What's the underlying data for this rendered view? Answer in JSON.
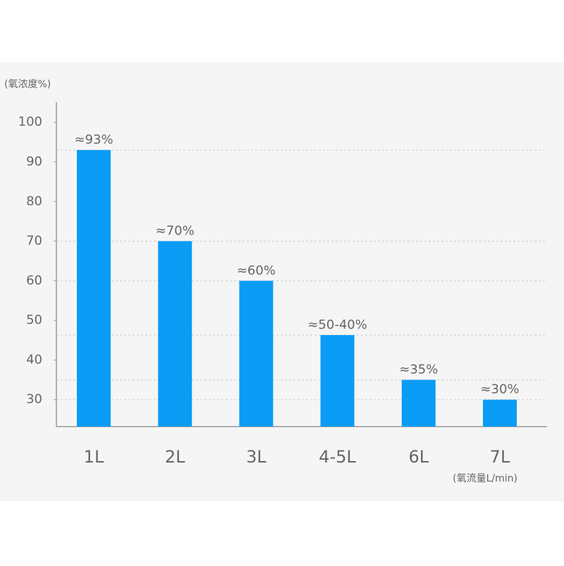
{
  "chart_data": {
    "type": "bar",
    "y_axis_label": "(氧浓度%)",
    "x_axis_label": "(氧流量L/min)",
    "categories": [
      "1L",
      "2L",
      "3L",
      "4-5L",
      "6L",
      "7L"
    ],
    "values": [
      93,
      70,
      60,
      46.3,
      35,
      30
    ],
    "value_labels": [
      "≈93%",
      "≈70%",
      "≈60%",
      "≈50-40%",
      "≈35%",
      "≈30%"
    ],
    "color": "#0b9cf6",
    "ylim": [
      23.2,
      105.1
    ],
    "yticks": [
      30,
      40,
      50,
      60,
      70,
      80,
      90,
      100
    ]
  }
}
